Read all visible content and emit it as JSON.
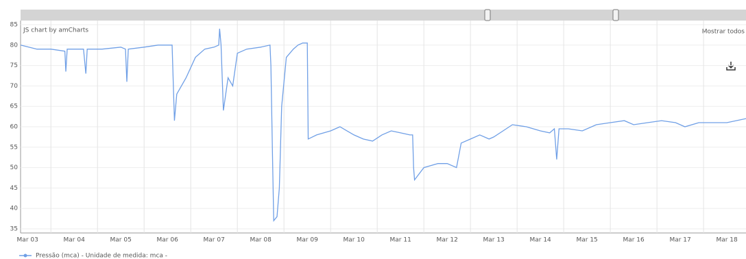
{
  "chart_data": {
    "type": "line",
    "credit": "JS chart by amCharts",
    "zoom_button": "Mostrar todos",
    "x": [
      -0.15,
      0.2,
      0.5,
      0.8,
      0.82,
      0.85,
      1.0,
      1.2,
      1.25,
      1.28,
      1.6,
      2.0,
      2.1,
      2.13,
      2.16,
      2.5,
      2.8,
      3.1,
      3.15,
      3.2,
      3.4,
      3.6,
      3.8,
      4.0,
      4.1,
      4.12,
      4.15,
      4.2,
      4.3,
      4.4,
      4.5,
      4.7,
      5.0,
      5.2,
      5.22,
      5.25,
      5.28,
      5.35,
      5.4,
      5.45,
      5.55,
      5.7,
      5.8,
      5.9,
      6.0,
      6.02,
      6.2,
      6.5,
      6.7,
      7.0,
      7.2,
      7.4,
      7.6,
      7.8,
      8.0,
      8.2,
      8.26,
      8.28,
      8.3,
      8.5,
      8.8,
      9.0,
      9.2,
      9.3,
      9.5,
      9.7,
      9.9,
      10.0,
      10.2,
      10.4,
      10.7,
      11.0,
      11.2,
      11.3,
      11.35,
      11.4,
      11.6,
      11.9,
      12.2,
      12.5,
      12.8,
      13.0,
      13.3,
      13.6,
      13.9,
      14.1,
      14.4,
      14.7,
      15.0,
      15.41
    ],
    "series": [
      {
        "name": "Pressão (mca) - Unidade de medida: mca -",
        "color": "#6f9fe6",
        "values": [
          80,
          79,
          79,
          78.5,
          73.5,
          79,
          79,
          79,
          73,
          79,
          79,
          79.5,
          79,
          71,
          79,
          79.5,
          80,
          80,
          61.5,
          68,
          72,
          77,
          79,
          79.5,
          80,
          84,
          80,
          64,
          72,
          70,
          78,
          79,
          79.5,
          80,
          75,
          55,
          37,
          38,
          45,
          65,
          77,
          79,
          80,
          80.5,
          80.5,
          57,
          58,
          59,
          60,
          58,
          57,
          56.5,
          58,
          59,
          58.5,
          58,
          58,
          50,
          47,
          50,
          51,
          51,
          50,
          56,
          57,
          58,
          57,
          57.5,
          59,
          60.5,
          60,
          59,
          58.5,
          59.5,
          52,
          59.5,
          59.5,
          59,
          60.5,
          61,
          61.5,
          60.5,
          61,
          61.5,
          61,
          60,
          61,
          61,
          61,
          62
        ]
      }
    ],
    "xlim": [
      -0.15,
      15.41
    ],
    "ylim": [
      34,
      86
    ],
    "xticks": [
      {
        "value": 0,
        "label": "Mar 03"
      },
      {
        "value": 1,
        "label": "Mar 04"
      },
      {
        "value": 2,
        "label": "Mar 05"
      },
      {
        "value": 3,
        "label": "Mar 06"
      },
      {
        "value": 4,
        "label": "Mar 07"
      },
      {
        "value": 5,
        "label": "Mar 08"
      },
      {
        "value": 6,
        "label": "Mar 09"
      },
      {
        "value": 7,
        "label": "Mar 10"
      },
      {
        "value": 8,
        "label": "Mar 11"
      },
      {
        "value": 9,
        "label": "Mar 12"
      },
      {
        "value": 10,
        "label": "Mar 13"
      },
      {
        "value": 11,
        "label": "Mar 14"
      },
      {
        "value": 12,
        "label": "Mar 15"
      },
      {
        "value": 13,
        "label": "Mar 16"
      },
      {
        "value": 14,
        "label": "Mar 17"
      },
      {
        "value": 15,
        "label": "Mar 18"
      }
    ],
    "yticks": [
      35,
      40,
      45,
      50,
      55,
      60,
      65,
      70,
      75,
      80,
      85
    ],
    "grid": true
  }
}
